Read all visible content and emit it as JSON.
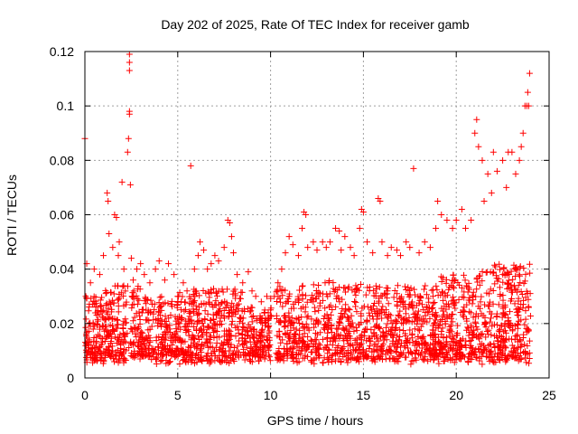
{
  "chart_data": {
    "type": "scatter",
    "title": "Day 202 of 2025, Rate Of TEC Index for receiver gamb",
    "xlabel": "GPS time / hours",
    "ylabel": "ROTI / TECUs",
    "xlim": [
      0,
      25
    ],
    "ylim": [
      0,
      0.12
    ],
    "x_ticks": [
      "0",
      "5",
      "10",
      "15",
      "20",
      "25"
    ],
    "y_ticks": [
      "0",
      "0.02",
      "0.04",
      "0.06",
      "0.08",
      "0.1",
      "0.12"
    ],
    "grid": true,
    "marker": "+",
    "color": "#ff0000",
    "series": [
      {
        "x": [
          0.0,
          0.05,
          0.1,
          0.3,
          0.5,
          0.8,
          1.0,
          1.2,
          1.25,
          1.3,
          1.5,
          1.6,
          1.7,
          1.8,
          1.85,
          2.0,
          2.1,
          2.3,
          2.35,
          2.4,
          2.4,
          2.4,
          2.4,
          2.4,
          2.45,
          2.5,
          2.6,
          2.8,
          3.0,
          3.2,
          3.5,
          3.8,
          4.0,
          4.3,
          4.5,
          4.8,
          5.0,
          5.3,
          5.5,
          5.7,
          5.9,
          6.1,
          6.2,
          6.4,
          6.6,
          6.8,
          7.0,
          7.2,
          7.5,
          7.7,
          7.8,
          7.9,
          8.0,
          8.2,
          8.5,
          8.8,
          9.0,
          9.2,
          9.5,
          9.8,
          10.0,
          10.2,
          10.4,
          10.6,
          10.8,
          11.0,
          11.2,
          11.5,
          11.7,
          11.8,
          11.9,
          12.0,
          12.3,
          12.5,
          12.8,
          13.0,
          13.2,
          13.5,
          13.7,
          13.8,
          14.0,
          14.3,
          14.5,
          14.8,
          14.9,
          15.0,
          15.2,
          15.5,
          15.8,
          15.9,
          16.0,
          16.3,
          16.5,
          16.8,
          17.0,
          17.3,
          17.5,
          17.7,
          18.0,
          18.3,
          18.6,
          18.9,
          19.0,
          19.2,
          19.5,
          19.8,
          20.0,
          20.3,
          20.5,
          20.8,
          21.0,
          21.1,
          21.2,
          21.4,
          21.5,
          21.7,
          21.9,
          22.0,
          22.2,
          22.5,
          22.7,
          22.8,
          23.0,
          23.2,
          23.4,
          23.5,
          23.6,
          23.7,
          23.8,
          23.85,
          23.9,
          23.95
        ],
        "y": [
          0.088,
          0.03,
          0.042,
          0.035,
          0.04,
          0.038,
          0.045,
          0.068,
          0.065,
          0.053,
          0.048,
          0.06,
          0.059,
          0.045,
          0.05,
          0.072,
          0.04,
          0.083,
          0.088,
          0.119,
          0.116,
          0.113,
          0.098,
          0.097,
          0.071,
          0.044,
          0.036,
          0.04,
          0.042,
          0.038,
          0.035,
          0.04,
          0.043,
          0.036,
          0.042,
          0.038,
          0.03,
          0.035,
          0.032,
          0.078,
          0.04,
          0.045,
          0.05,
          0.047,
          0.04,
          0.042,
          0.045,
          0.043,
          0.048,
          0.058,
          0.057,
          0.052,
          0.046,
          0.038,
          0.035,
          0.039,
          0.032,
          0.03,
          0.028,
          0.03,
          0.025,
          0.03,
          0.035,
          0.04,
          0.046,
          0.052,
          0.049,
          0.045,
          0.055,
          0.061,
          0.06,
          0.048,
          0.05,
          0.047,
          0.05,
          0.048,
          0.05,
          0.055,
          0.054,
          0.047,
          0.052,
          0.048,
          0.045,
          0.055,
          0.062,
          0.061,
          0.05,
          0.046,
          0.066,
          0.065,
          0.05,
          0.045,
          0.048,
          0.047,
          0.045,
          0.05,
          0.048,
          0.077,
          0.046,
          0.05,
          0.048,
          0.055,
          0.065,
          0.06,
          0.058,
          0.055,
          0.058,
          0.062,
          0.055,
          0.058,
          0.09,
          0.095,
          0.085,
          0.08,
          0.065,
          0.075,
          0.068,
          0.083,
          0.076,
          0.08,
          0.07,
          0.083,
          0.083,
          0.075,
          0.08,
          0.085,
          0.09,
          0.1,
          0.1,
          0.105,
          0.1,
          0.112
        ]
      }
    ]
  }
}
